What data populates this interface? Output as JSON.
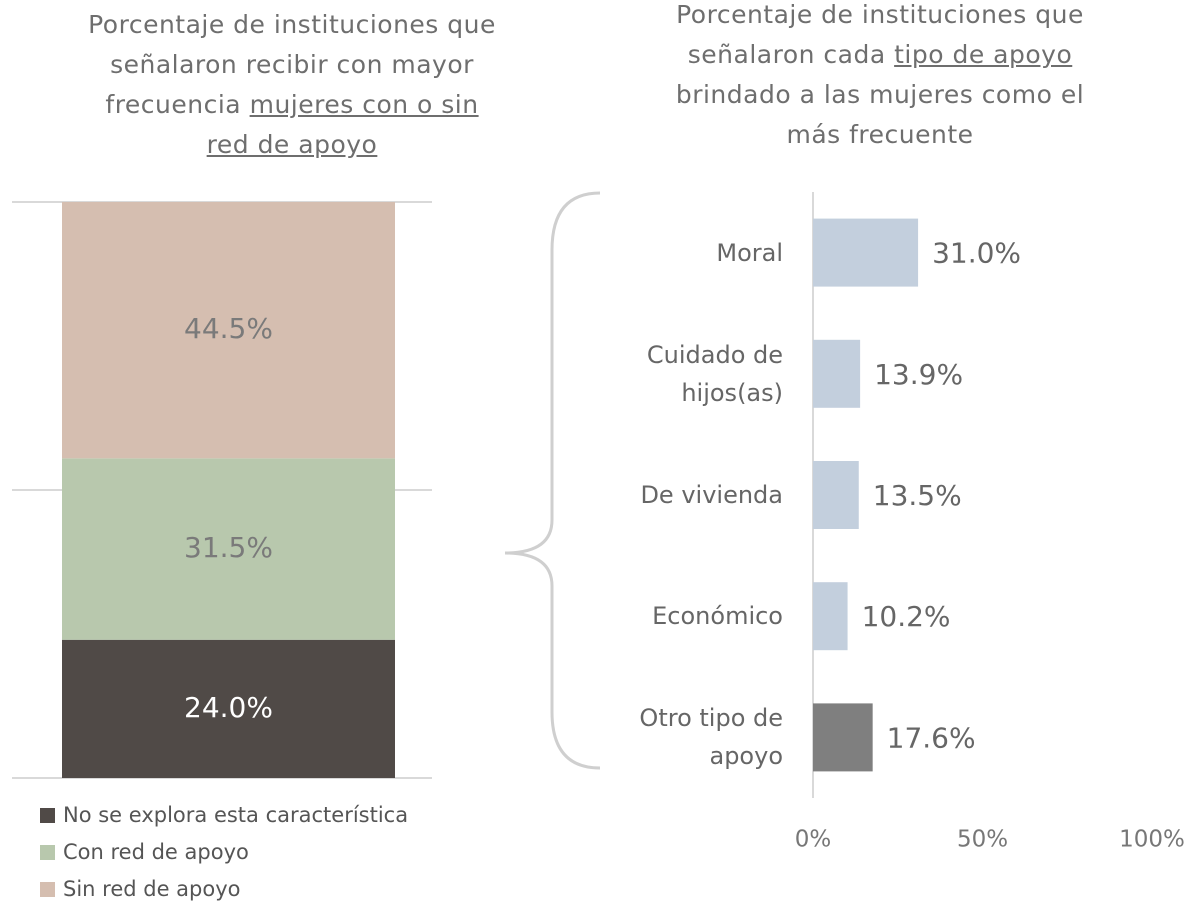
{
  "chart_data": [
    {
      "type": "stacked_bar",
      "title_parts": [
        {
          "text": "Porcentaje de instituciones que señalaron recibir con mayor frecuencia",
          "underline": false
        },
        {
          "text": "mujeres con o sin red de apoyo",
          "underline": true
        }
      ],
      "ylim": [
        0,
        100
      ],
      "yticks": [
        0,
        50,
        100
      ],
      "grid": true,
      "series": [
        {
          "name": "No se explora esta característica",
          "color": "#504a47",
          "label_color": "#ffffff",
          "values": [
            24.0
          ],
          "value_labels": [
            "24.0%"
          ]
        },
        {
          "name": "Con red de apoyo",
          "color": "#b8c8ad",
          "label_color": "#7a7a7a",
          "values": [
            31.5
          ],
          "value_labels": [
            "31.5%"
          ]
        },
        {
          "name": "Sin red de apoyo",
          "color": "#d5beb0",
          "label_color": "#7a7a7a",
          "values": [
            44.5
          ],
          "value_labels": [
            "44.5%"
          ]
        }
      ]
    },
    {
      "type": "hbar",
      "title_parts": [
        {
          "text": "Porcentaje de instituciones que señalaron cada",
          "underline": false
        },
        {
          "text": "tipo de apoyo",
          "underline": true
        },
        {
          "text": "brindado a las mujeres como el más frecuente",
          "underline": false
        }
      ],
      "categories": [
        "Moral",
        "Cuidado de hijos(as)",
        "De vivienda",
        "Económico",
        "Otro tipo de apoyo"
      ],
      "values": [
        31.0,
        13.9,
        13.5,
        10.2,
        17.6
      ],
      "value_labels": [
        "31.0%",
        "13.9%",
        "13.5%",
        "10.2%",
        "17.6%"
      ],
      "colors": [
        "#c3cfdd",
        "#c3cfdd",
        "#c3cfdd",
        "#c3cfdd",
        "#7f7f7f"
      ],
      "xlim": [
        0,
        100
      ],
      "xticks": [
        {
          "value": 0,
          "label": "0%"
        },
        {
          "value": 50,
          "label": "50%"
        },
        {
          "value": 100,
          "label": "100%"
        }
      ]
    }
  ]
}
